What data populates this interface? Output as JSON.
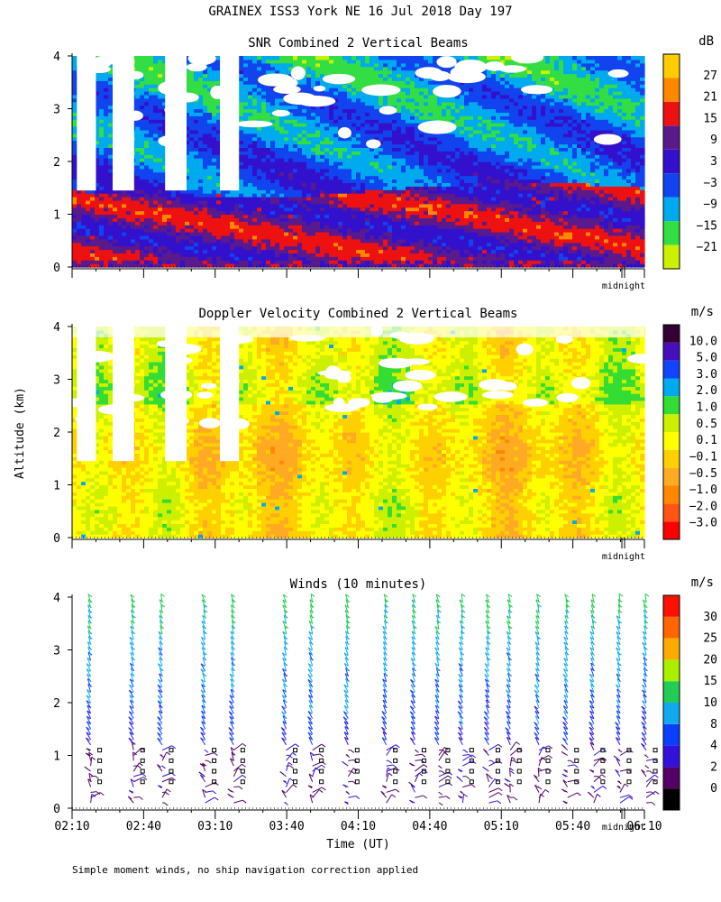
{
  "header": {
    "title": "GRAINEX ISS3 York NE  16 Jul 2018 Day 197"
  },
  "footnote": "Simple moment winds, no ship navigation correction applied",
  "y_axis_label": "Altitude (km)",
  "x_axis_label": "Time (UT)",
  "midnight_label": "midnight",
  "altitude_ticks": [
    "0",
    "1",
    "2",
    "3",
    "4"
  ],
  "time_ticks": [
    "02:10",
    "02:40",
    "03:10",
    "03:40",
    "04:10",
    "04:40",
    "05:10",
    "05:40",
    "06:10"
  ],
  "chart_data": [
    {
      "type": "heatmap",
      "title": "SNR Combined 2 Vertical Beams",
      "colorbar_unit": "dB",
      "colorbar_labels": [
        "27",
        "21",
        "15",
        "9",
        "3",
        "−3",
        "−9",
        "−15",
        "−21"
      ],
      "colors": [
        "#ccf000",
        "#33dd44",
        "#00aaee",
        "#1144ee",
        "#3311cc",
        "#5a1a8c",
        "#ee1111",
        "#ff8800",
        "#ffcc00"
      ],
      "ylim": [
        0,
        4
      ],
      "x_range": [
        "02:10",
        "06:10"
      ],
      "grid": false
    },
    {
      "type": "heatmap",
      "title": "Doppler Velocity Combined 2 Vertical Beams",
      "colorbar_unit": "m/s",
      "colorbar_labels": [
        "10.0",
        "5.0",
        "3.0",
        "2.0",
        "1.0",
        "0.5",
        "0.1",
        "−0.1",
        "−0.5",
        "−1.0",
        "−2.0",
        "−3.0"
      ],
      "colors": [
        "#ff0000",
        "#ff5511",
        "#ff8800",
        "#ffaa22",
        "#ffd000",
        "#ffff00",
        "#ccf000",
        "#33dd33",
        "#00aaee",
        "#1144ff",
        "#4411bb",
        "#330033"
      ],
      "ylim": [
        0,
        4
      ],
      "x_range": [
        "02:10",
        "06:10"
      ],
      "grid": false
    },
    {
      "type": "scatter",
      "title": "Winds (10 minutes)",
      "colorbar_unit": "m/s",
      "colorbar_labels": [
        "30",
        "25",
        "20",
        "15",
        "10",
        "8",
        "4",
        "2",
        "0"
      ],
      "colors": [
        "#000000",
        "#550066",
        "#3311dd",
        "#0a3fff",
        "#11aaee",
        "#22cc55",
        "#aaee00",
        "#ffaa00",
        "#ff6600",
        "#ff1100"
      ],
      "ylim": [
        0,
        4
      ],
      "x_range": [
        "02:10",
        "06:10"
      ],
      "grid": false
    }
  ]
}
